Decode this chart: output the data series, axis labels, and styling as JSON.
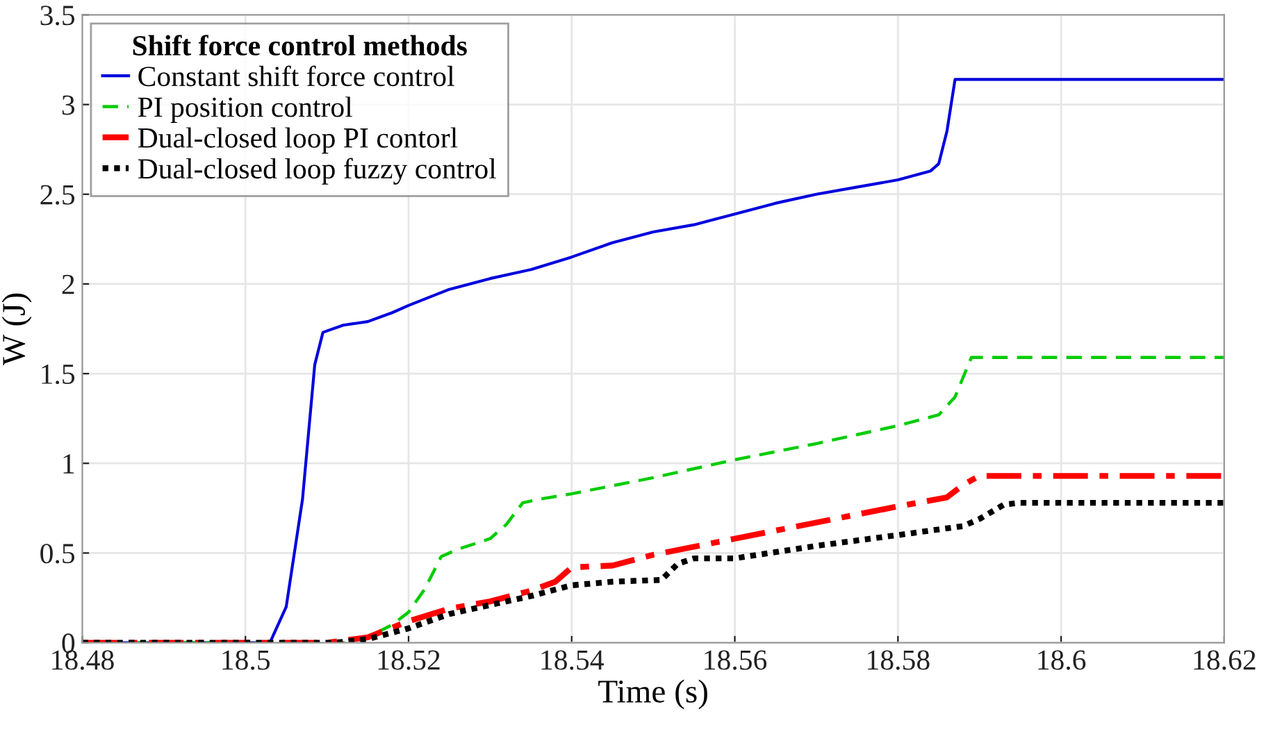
{
  "chart_data": {
    "type": "line",
    "xlabel": "Time (s)",
    "ylabel": "W (J)",
    "legend_title": "Shift force control methods",
    "legend": "top left",
    "grid": true,
    "xlim": [
      18.48,
      18.62
    ],
    "xticks": [
      18.48,
      18.5,
      18.52,
      18.54,
      18.56,
      18.58,
      18.6,
      18.62
    ],
    "ylim": [
      0,
      3.5
    ],
    "yticks": [
      0,
      0.5,
      1,
      1.5,
      2,
      2.5,
      3,
      3.5
    ],
    "series": [
      {
        "name": "Constant shift force control",
        "color": "#0000dd",
        "line_style": "solid",
        "x": [
          18.48,
          18.503,
          18.505,
          18.507,
          18.5085,
          18.5095,
          18.512,
          18.515,
          18.518,
          18.52,
          18.525,
          18.53,
          18.535,
          18.54,
          18.545,
          18.55,
          18.555,
          18.56,
          18.565,
          18.57,
          18.575,
          18.58,
          18.584,
          18.585,
          18.586,
          18.587,
          18.62
        ],
        "values": [
          0,
          0,
          0.2,
          0.8,
          1.55,
          1.73,
          1.77,
          1.79,
          1.84,
          1.88,
          1.97,
          2.03,
          2.08,
          2.15,
          2.23,
          2.29,
          2.33,
          2.39,
          2.45,
          2.5,
          2.54,
          2.58,
          2.63,
          2.67,
          2.85,
          3.14,
          3.14
        ]
      },
      {
        "name": "PI position control",
        "color": "#00cc00",
        "line_style": "dashed",
        "x": [
          18.48,
          18.512,
          18.515,
          18.518,
          18.52,
          18.522,
          18.524,
          18.526,
          18.53,
          18.532,
          18.534,
          18.536,
          18.54,
          18.55,
          18.56,
          18.57,
          18.58,
          18.585,
          18.587,
          18.589,
          18.62
        ],
        "values": [
          0,
          0,
          0.03,
          0.1,
          0.17,
          0.3,
          0.48,
          0.52,
          0.58,
          0.66,
          0.78,
          0.8,
          0.83,
          0.92,
          1.02,
          1.11,
          1.21,
          1.27,
          1.37,
          1.59,
          1.59
        ]
      },
      {
        "name": "Dual-closed loop PI contorl",
        "color": "#ff0000",
        "line_style": "dashdot",
        "x": [
          18.48,
          18.51,
          18.515,
          18.52,
          18.525,
          18.53,
          18.535,
          18.538,
          18.54,
          18.545,
          18.55,
          18.56,
          18.57,
          18.58,
          18.586,
          18.588,
          18.59,
          18.62
        ],
        "values": [
          0,
          0,
          0.03,
          0.12,
          0.19,
          0.23,
          0.29,
          0.34,
          0.42,
          0.43,
          0.49,
          0.58,
          0.67,
          0.76,
          0.81,
          0.88,
          0.93,
          0.93
        ]
      },
      {
        "name": "Dual-closed loop fuzzy control",
        "color": "#000000",
        "line_style": "dotted",
        "x": [
          18.48,
          18.511,
          18.515,
          18.52,
          18.525,
          18.53,
          18.535,
          18.54,
          18.545,
          18.551,
          18.553,
          18.555,
          18.56,
          18.57,
          18.58,
          18.588,
          18.59,
          18.593,
          18.595,
          18.62
        ],
        "values": [
          0,
          0,
          0.02,
          0.08,
          0.16,
          0.21,
          0.26,
          0.32,
          0.34,
          0.35,
          0.44,
          0.47,
          0.47,
          0.54,
          0.6,
          0.65,
          0.69,
          0.77,
          0.78,
          0.78
        ]
      }
    ]
  }
}
